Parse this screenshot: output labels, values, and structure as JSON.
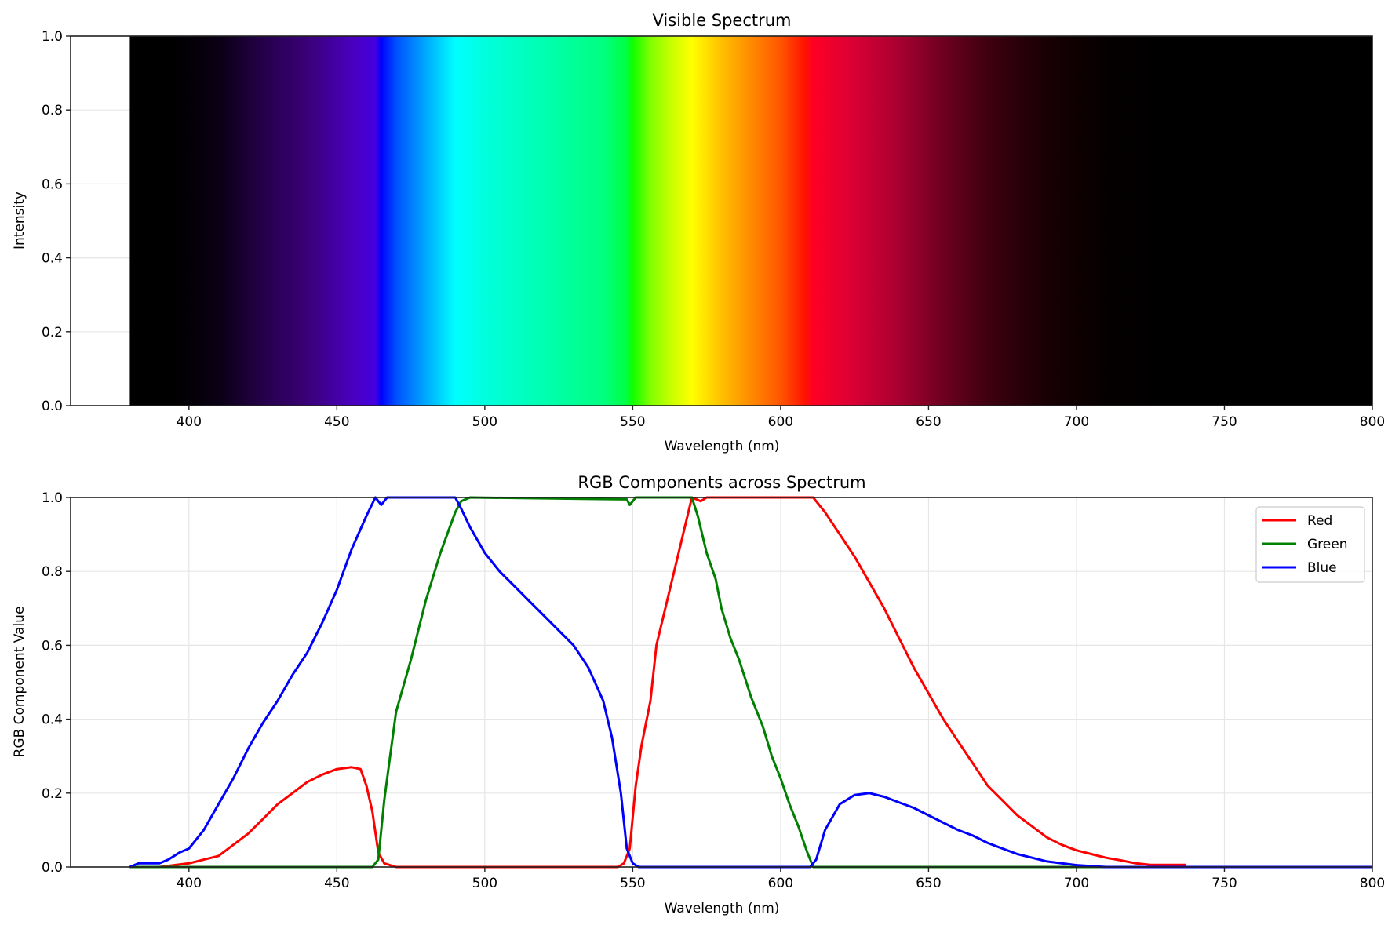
{
  "chart_data": [
    {
      "type": "heatmap",
      "title": "Visible Spectrum",
      "xlabel": "Wavelength (nm)",
      "ylabel": "Intensity",
      "xlim": [
        360,
        800
      ],
      "ylim": [
        0.0,
        1.0
      ],
      "xticks": [
        400,
        450,
        500,
        550,
        600,
        650,
        700,
        750,
        800
      ],
      "yticks": [
        "0.0",
        "0.2",
        "0.4",
        "0.6",
        "0.8",
        "1.0"
      ],
      "grid": true,
      "spectrum_range": [
        380,
        800
      ],
      "color_stops": [
        {
          "nm": 380,
          "color": "#000000"
        },
        {
          "nm": 395,
          "color": "#000000"
        },
        {
          "nm": 410,
          "color": "#0a0014"
        },
        {
          "nm": 425,
          "color": "#25004a"
        },
        {
          "nm": 440,
          "color": "#3a0078"
        },
        {
          "nm": 455,
          "color": "#4a00bd"
        },
        {
          "nm": 463,
          "color": "#4400e0"
        },
        {
          "nm": 465,
          "color": "#0000ff"
        },
        {
          "nm": 470,
          "color": "#0050ff"
        },
        {
          "nm": 480,
          "color": "#00a8ff"
        },
        {
          "nm": 490,
          "color": "#00ffff"
        },
        {
          "nm": 500,
          "color": "#00ffdc"
        },
        {
          "nm": 520,
          "color": "#00ffb0"
        },
        {
          "nm": 540,
          "color": "#00ff80"
        },
        {
          "nm": 548,
          "color": "#00ff40"
        },
        {
          "nm": 550,
          "color": "#10ff00"
        },
        {
          "nm": 556,
          "color": "#80ff00"
        },
        {
          "nm": 563,
          "color": "#c8ff00"
        },
        {
          "nm": 570,
          "color": "#ffff00"
        },
        {
          "nm": 580,
          "color": "#ffc000"
        },
        {
          "nm": 590,
          "color": "#ff8a00"
        },
        {
          "nm": 600,
          "color": "#ff5500"
        },
        {
          "nm": 608,
          "color": "#ff1500"
        },
        {
          "nm": 611,
          "color": "#ff0025"
        },
        {
          "nm": 625,
          "color": "#d80035"
        },
        {
          "nm": 640,
          "color": "#a80030"
        },
        {
          "nm": 655,
          "color": "#6e0020"
        },
        {
          "nm": 670,
          "color": "#3e0010"
        },
        {
          "nm": 690,
          "color": "#180004"
        },
        {
          "nm": 710,
          "color": "#050000"
        },
        {
          "nm": 730,
          "color": "#000000"
        },
        {
          "nm": 800,
          "color": "#000000"
        }
      ]
    },
    {
      "type": "line",
      "title": "RGB Components across Spectrum",
      "xlabel": "Wavelength (nm)",
      "ylabel": "RGB Component Value",
      "xlim": [
        360,
        800
      ],
      "ylim": [
        0.0,
        1.0
      ],
      "xticks": [
        400,
        450,
        500,
        550,
        600,
        650,
        700,
        750,
        800
      ],
      "yticks": [
        "0.0",
        "0.2",
        "0.4",
        "0.6",
        "0.8",
        "1.0"
      ],
      "grid": true,
      "legend_position": "upper right",
      "series": [
        {
          "name": "Red",
          "color": "#ff0000",
          "points": [
            [
              380,
              0
            ],
            [
              390,
              0
            ],
            [
              395,
              0.005
            ],
            [
              400,
              0.01
            ],
            [
              405,
              0.02
            ],
            [
              410,
              0.03
            ],
            [
              415,
              0.06
            ],
            [
              420,
              0.09
            ],
            [
              425,
              0.13
            ],
            [
              430,
              0.17
            ],
            [
              435,
              0.2
            ],
            [
              440,
              0.23
            ],
            [
              445,
              0.25
            ],
            [
              450,
              0.265
            ],
            [
              455,
              0.27
            ],
            [
              458,
              0.265
            ],
            [
              460,
              0.22
            ],
            [
              462,
              0.15
            ],
            [
              464,
              0.04
            ],
            [
              466,
              0.01
            ],
            [
              470,
              0
            ],
            [
              545,
              0
            ],
            [
              547,
              0.01
            ],
            [
              549,
              0.05
            ],
            [
              551,
              0.22
            ],
            [
              553,
              0.33
            ],
            [
              556,
              0.45
            ],
            [
              558,
              0.6
            ],
            [
              561,
              0.7
            ],
            [
              564,
              0.8
            ],
            [
              567,
              0.9
            ],
            [
              570,
              1.0
            ],
            [
              573,
              0.99
            ],
            [
              575,
              1.0
            ],
            [
              611,
              1.0
            ],
            [
              615,
              0.96
            ],
            [
              620,
              0.9
            ],
            [
              625,
              0.84
            ],
            [
              630,
              0.77
            ],
            [
              635,
              0.7
            ],
            [
              640,
              0.62
            ],
            [
              645,
              0.54
            ],
            [
              650,
              0.47
            ],
            [
              655,
              0.4
            ],
            [
              660,
              0.34
            ],
            [
              665,
              0.28
            ],
            [
              670,
              0.22
            ],
            [
              675,
              0.18
            ],
            [
              680,
              0.14
            ],
            [
              685,
              0.11
            ],
            [
              690,
              0.08
            ],
            [
              695,
              0.06
            ],
            [
              700,
              0.045
            ],
            [
              705,
              0.035
            ],
            [
              710,
              0.025
            ],
            [
              715,
              0.018
            ],
            [
              720,
              0.01
            ],
            [
              725,
              0.006
            ],
            [
              737,
              0.006
            ]
          ]
        },
        {
          "name": "Green",
          "color": "#008000",
          "points": [
            [
              380,
              0
            ],
            [
              462,
              0
            ],
            [
              464,
              0.02
            ],
            [
              466,
              0.18
            ],
            [
              468,
              0.3
            ],
            [
              470,
              0.42
            ],
            [
              475,
              0.56
            ],
            [
              480,
              0.72
            ],
            [
              485,
              0.85
            ],
            [
              490,
              0.96
            ],
            [
              492,
              0.99
            ],
            [
              495,
              1.0
            ],
            [
              548,
              0.995
            ],
            [
              549,
              0.98
            ],
            [
              551,
              1.0
            ],
            [
              570,
              1.0
            ],
            [
              572,
              0.95
            ],
            [
              575,
              0.85
            ],
            [
              578,
              0.78
            ],
            [
              580,
              0.7
            ],
            [
              583,
              0.62
            ],
            [
              586,
              0.56
            ],
            [
              590,
              0.46
            ],
            [
              594,
              0.38
            ],
            [
              597,
              0.3
            ],
            [
              600,
              0.24
            ],
            [
              603,
              0.17
            ],
            [
              606,
              0.11
            ],
            [
              609,
              0.04
            ],
            [
              611,
              0.0
            ],
            [
              800,
              0
            ]
          ]
        },
        {
          "name": "Blue",
          "color": "#0000ff",
          "points": [
            [
              380,
              0
            ],
            [
              383,
              0.01
            ],
            [
              390,
              0.01
            ],
            [
              393,
              0.02
            ],
            [
              397,
              0.04
            ],
            [
              400,
              0.05
            ],
            [
              405,
              0.1
            ],
            [
              410,
              0.17
            ],
            [
              415,
              0.24
            ],
            [
              420,
              0.32
            ],
            [
              425,
              0.39
            ],
            [
              430,
              0.45
            ],
            [
              435,
              0.52
            ],
            [
              440,
              0.58
            ],
            [
              445,
              0.66
            ],
            [
              450,
              0.75
            ],
            [
              455,
              0.86
            ],
            [
              460,
              0.95
            ],
            [
              463,
              1.0
            ],
            [
              465,
              0.98
            ],
            [
              467,
              1.0
            ],
            [
              490,
              1.0
            ],
            [
              492,
              0.97
            ],
            [
              495,
              0.92
            ],
            [
              500,
              0.85
            ],
            [
              505,
              0.8
            ],
            [
              510,
              0.76
            ],
            [
              515,
              0.72
            ],
            [
              520,
              0.68
            ],
            [
              525,
              0.64
            ],
            [
              530,
              0.6
            ],
            [
              535,
              0.54
            ],
            [
              540,
              0.45
            ],
            [
              543,
              0.35
            ],
            [
              546,
              0.2
            ],
            [
              548,
              0.05
            ],
            [
              550,
              0.01
            ],
            [
              552,
              0
            ],
            [
              610,
              0
            ],
            [
              612,
              0.02
            ],
            [
              615,
              0.1
            ],
            [
              620,
              0.17
            ],
            [
              625,
              0.195
            ],
            [
              630,
              0.2
            ],
            [
              635,
              0.19
            ],
            [
              640,
              0.175
            ],
            [
              645,
              0.16
            ],
            [
              650,
              0.14
            ],
            [
              655,
              0.12
            ],
            [
              660,
              0.1
            ],
            [
              665,
              0.085
            ],
            [
              670,
              0.065
            ],
            [
              675,
              0.05
            ],
            [
              680,
              0.035
            ],
            [
              685,
              0.025
            ],
            [
              690,
              0.015
            ],
            [
              695,
              0.01
            ],
            [
              700,
              0.005
            ],
            [
              710,
              0
            ],
            [
              800,
              0
            ]
          ]
        }
      ]
    }
  ],
  "top": {
    "title": "Visible Spectrum",
    "xlabel": "Wavelength (nm)",
    "ylabel": "Intensity"
  },
  "bottom": {
    "title": "RGB Components across Spectrum",
    "xlabel": "Wavelength (nm)",
    "ylabel": "RGB Component Value",
    "legend": [
      "Red",
      "Green",
      "Blue"
    ]
  }
}
